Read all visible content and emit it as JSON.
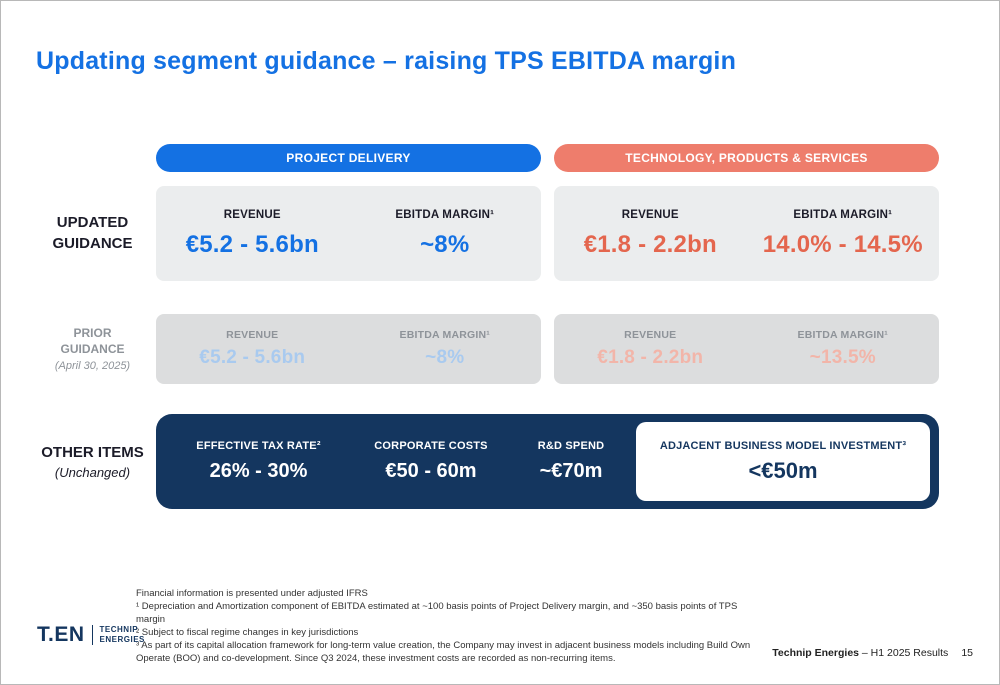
{
  "title": "Updating segment guidance – raising TPS EBITDA margin",
  "colors": {
    "accent_blue": "#1471e3",
    "accent_coral": "#ee7d6c",
    "value_coral": "#e4664e",
    "muted_blue": "#a9caef",
    "muted_coral": "#f2b5a9",
    "navy": "#14365f",
    "card_gray": "#ebedee",
    "prior_card_gray": "#dcddde"
  },
  "column_headers": {
    "pd": "PROJECT DELIVERY",
    "tps": "TECHNOLOGY, PRODUCTS & SERVICES"
  },
  "updated_guidance": {
    "row_label": [
      "UPDATED",
      "GUIDANCE"
    ],
    "pd": {
      "revenue": {
        "label": "REVENUE",
        "value": "€5.2 - 5.6bn"
      },
      "ebitda": {
        "label": "EBITDA MARGIN¹",
        "value": "~8%"
      }
    },
    "tps": {
      "revenue": {
        "label": "REVENUE",
        "value": "€1.8 - 2.2bn"
      },
      "ebitda": {
        "label": "EBITDA MARGIN¹",
        "value": "14.0% - 14.5%"
      }
    }
  },
  "prior_guidance": {
    "row_label": [
      "PRIOR",
      "GUIDANCE"
    ],
    "row_sublabel": "(April 30, 2025)",
    "pd": {
      "revenue": {
        "label": "REVENUE",
        "value": "€5.2 - 5.6bn"
      },
      "ebitda": {
        "label": "EBITDA MARGIN¹",
        "value": "~8%"
      }
    },
    "tps": {
      "revenue": {
        "label": "REVENUE",
        "value": "€1.8 - 2.2bn"
      },
      "ebitda": {
        "label": "EBITDA MARGIN¹",
        "value": "~13.5%"
      }
    }
  },
  "other_items": {
    "row_label": "OTHER ITEMS",
    "row_sublabel": "(Unchanged)",
    "items": [
      {
        "label": "EFFECTIVE TAX RATE²",
        "value": "26% - 30%"
      },
      {
        "label": "CORPORATE COSTS",
        "value": "€50 - 60m"
      },
      {
        "label": "R&D SPEND",
        "value": "~€70m"
      }
    ],
    "highlight": {
      "label": "ADJACENT BUSINESS MODEL INVESTMENT³",
      "value": "<€50m"
    }
  },
  "footnotes": [
    "Financial information is presented under adjusted IFRS",
    "¹ Depreciation and Amortization component of EBITDA estimated at ~100 basis points of Project Delivery margin, and ~350 basis points of TPS margin",
    "² Subject to fiscal regime changes in key jurisdictions",
    "³ As part of its capital allocation framework for long-term value creation, the Company may invest in adjacent business models including Build Own Operate (BOO) and co-development. Since Q3 2024, these investment costs are recorded as non-recurring items."
  ],
  "logo": {
    "mark": "T.EN",
    "line1": "TECHNIP",
    "line2": "ENERGIES"
  },
  "footer": {
    "company": "Technip Energies",
    "rest": " – H1 2025 Results",
    "page": "15"
  }
}
